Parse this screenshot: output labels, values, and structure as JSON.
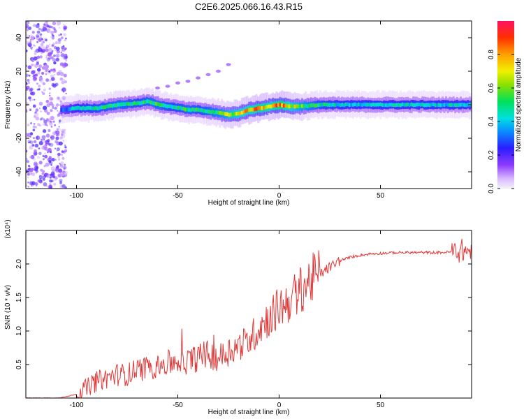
{
  "title": "C2E6.2025.066.16.43.R15",
  "chart_data": [
    {
      "type": "heatmap",
      "xlabel": "Height of straight line (km)",
      "ylabel": "Frequency (Hz)",
      "xlim": [
        -125,
        95
      ],
      "ylim": [
        -50,
        50
      ],
      "x_ticks": [
        -100,
        -50,
        0,
        50
      ],
      "x_tick_labels": [
        "-100",
        "-50",
        "0",
        "50"
      ],
      "y_ticks": [
        -40,
        -20,
        0,
        20,
        40
      ],
      "y_tick_labels": [
        "-40",
        "-20",
        "0",
        "20",
        "40"
      ],
      "colorbar": {
        "label": "Normalized spectral amplitude",
        "ticks": [
          0.0,
          0.2,
          0.4,
          0.6,
          0.8
        ],
        "tick_labels": [
          "0.0",
          "0.2",
          "0.4",
          "0.6",
          "0.8"
        ]
      },
      "ridge": {
        "x": [
          -108,
          -100,
          -90,
          -80,
          -70,
          -65,
          -60,
          -55,
          -50,
          -45,
          -40,
          -35,
          -30,
          -25,
          -20,
          -15,
          -10,
          -5,
          0,
          5,
          10,
          20,
          30,
          40,
          50,
          60,
          70,
          80,
          90,
          95
        ],
        "freq": [
          -3,
          -2,
          -2,
          0,
          1,
          2,
          0,
          -1,
          -2,
          -3,
          -3,
          -4,
          -5,
          -6,
          -5,
          -3,
          -2,
          -1,
          0,
          -1,
          -1,
          0,
          0,
          0,
          0,
          0,
          0,
          0,
          0,
          0
        ],
        "amplitude": [
          0.3,
          0.45,
          0.5,
          0.55,
          0.5,
          0.55,
          0.55,
          0.5,
          0.5,
          0.55,
          0.5,
          0.55,
          0.6,
          0.7,
          0.75,
          0.8,
          0.85,
          0.8,
          0.9,
          0.75,
          0.65,
          0.5,
          0.45,
          0.45,
          0.45,
          0.45,
          0.45,
          0.45,
          0.45,
          0.4
        ]
      },
      "stray_points": {
        "x": [
          -60,
          -55,
          -50,
          -45,
          -40,
          -35,
          -30,
          -25
        ],
        "freq": [
          10,
          11,
          13,
          14,
          16,
          18,
          20,
          24
        ]
      }
    },
    {
      "type": "line",
      "xlabel": "Height of straight line (km)",
      "ylabel": "SNR (10 * v/v)",
      "y_multiplier": "(x10⁴)",
      "xlim": [
        -125,
        95
      ],
      "ylim": [
        0,
        2.5
      ],
      "x_ticks": [
        -100,
        -50,
        0,
        50
      ],
      "x_tick_labels": [
        "-100",
        "-50",
        "0",
        "50"
      ],
      "y_ticks": [
        0.5,
        1.0,
        1.5,
        2.0
      ],
      "y_tick_labels": [
        "0.5",
        "1.0",
        "1.5",
        "2.0"
      ],
      "color": "#e03a3a",
      "series": [
        {
          "x": [
            -125,
            -110,
            -105,
            -100,
            -95,
            -90,
            -85,
            -80,
            -75,
            -70,
            -65,
            -60,
            -55,
            -50,
            -45,
            -40,
            -35,
            -30,
            -25,
            -20,
            -15,
            -10,
            -5,
            0,
            5,
            10,
            15,
            20,
            25,
            30,
            35,
            40,
            45,
            50,
            60,
            70,
            80,
            85,
            90,
            95
          ],
          "values": [
            0.0,
            0.0,
            0.02,
            0.06,
            0.15,
            0.25,
            0.3,
            0.35,
            0.35,
            0.42,
            0.45,
            0.48,
            0.52,
            0.55,
            0.55,
            0.6,
            0.65,
            0.6,
            0.7,
            0.78,
            0.85,
            1.05,
            1.2,
            1.35,
            1.45,
            1.6,
            1.75,
            1.85,
            1.95,
            2.05,
            2.1,
            2.13,
            2.15,
            2.16,
            2.17,
            2.17,
            2.17,
            2.18,
            2.2,
            2.18
          ]
        }
      ]
    }
  ]
}
